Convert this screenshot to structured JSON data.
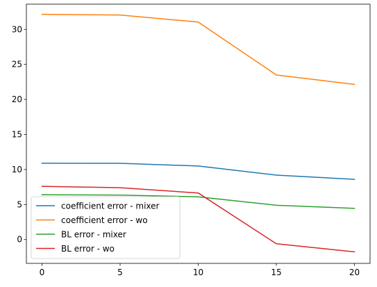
{
  "chart_data": {
    "type": "line",
    "title": "",
    "xlabel": "",
    "ylabel": "",
    "x": [
      0,
      5,
      10,
      15,
      20
    ],
    "xlim": [
      -1,
      21
    ],
    "ylim": [
      -3.4,
      33.6
    ],
    "xticks": [
      0,
      5,
      10,
      15,
      20
    ],
    "yticks": [
      0,
      5,
      10,
      15,
      20,
      25,
      30
    ],
    "grid": false,
    "legend_position": "lower-left",
    "series": [
      {
        "name": "coefficient error - mixer",
        "color": "#1f77b4",
        "values": [
          10.9,
          10.88,
          10.5,
          9.2,
          8.6
        ]
      },
      {
        "name": "coefficient error - wo",
        "color": "#ff7f0e",
        "values": [
          32.15,
          32.05,
          31.05,
          23.5,
          22.15
        ]
      },
      {
        "name": "BL error - mixer",
        "color": "#2ca02c",
        "values": [
          6.4,
          6.35,
          6.1,
          4.9,
          4.45
        ]
      },
      {
        "name": "BL error - wo",
        "color": "#d62728",
        "values": [
          7.6,
          7.4,
          6.65,
          -0.6,
          -1.75
        ]
      }
    ]
  }
}
